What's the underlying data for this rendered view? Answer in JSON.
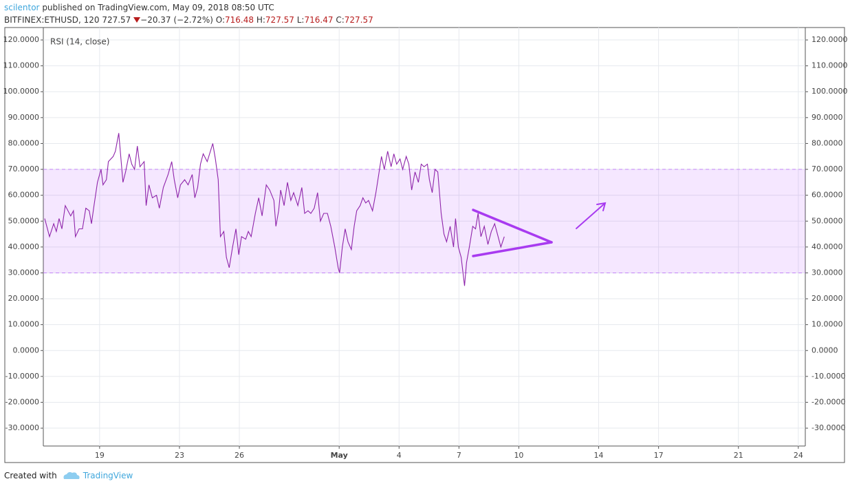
{
  "header": {
    "author": "scilentor",
    "published": " published on TradingView.com, May 09, 2018 08:50 UTC",
    "symbol": "BITFINEX:ETHUSD, 120",
    "last": "727.57",
    "change": "−20.37 (−2.72%)",
    "ohlc": [
      {
        "label": "O:",
        "value": "716.48"
      },
      {
        "label": "H:",
        "value": "727.57"
      },
      {
        "label": "L:",
        "value": "716.47"
      },
      {
        "label": "C:",
        "value": "727.57"
      }
    ]
  },
  "footer": {
    "created_with": "Created with",
    "brand": "TradingView"
  },
  "chart_data": {
    "type": "line",
    "x": [
      16.25,
      16.49,
      16.7,
      16.83,
      16.97,
      17.11,
      17.28,
      17.55,
      17.69,
      17.79,
      17.97,
      18.14,
      18.31,
      18.48,
      18.59,
      18.72,
      18.89,
      19.07,
      19.17,
      19.34,
      19.44,
      19.68,
      19.79,
      19.96,
      20.17,
      20.3,
      20.48,
      20.61,
      20.75,
      20.89,
      21.02,
      21.23,
      21.33,
      21.47,
      21.64,
      21.85,
      21.99,
      22.19,
      22.43,
      22.61,
      22.74,
      22.91,
      23.05,
      23.26,
      23.43,
      23.64,
      23.77,
      23.91,
      24.05,
      24.19,
      24.39,
      24.67,
      24.8,
      24.94,
      25.05,
      25.22,
      25.35,
      25.49,
      25.66,
      25.83,
      25.97,
      26.11,
      26.32,
      26.45,
      26.59,
      26.8,
      26.97,
      27.14,
      27.35,
      27.52,
      27.73,
      27.83,
      27.97,
      28.07,
      28.24,
      28.41,
      28.58,
      28.72,
      28.93,
      29.13,
      29.27,
      29.44,
      29.58,
      29.75,
      29.92,
      30.06,
      30.23,
      30.41,
      30.58,
      30.78,
      30.95,
      31.02,
      31.16,
      31.3,
      31.44,
      31.61,
      31.75,
      31.88,
      32.05,
      32.19,
      32.33,
      32.47,
      32.67,
      32.84,
      32.98,
      33.12,
      33.26,
      33.43,
      33.6,
      33.74,
      33.88,
      34.05,
      34.18,
      34.36,
      34.49,
      34.63,
      34.8,
      34.97,
      35.11,
      35.25,
      35.42,
      35.52,
      35.66,
      35.8,
      35.94,
      36.11,
      36.25,
      36.38,
      36.56,
      36.73,
      36.83,
      36.97,
      37.11,
      37.28,
      37.38,
      37.52,
      37.69,
      37.83,
      37.96,
      38.1,
      38.27,
      38.45,
      38.62,
      38.79,
      38.96,
      39.1,
      39.27
    ],
    "series": [
      {
        "name": "RSI (14, close)",
        "color": "#8e24aa",
        "values": [
          51,
          44,
          49,
          46,
          51,
          47,
          56,
          52,
          54,
          44,
          47,
          47,
          55,
          54,
          49,
          56,
          65,
          70,
          64,
          66,
          73,
          75,
          77,
          84,
          65,
          69,
          76,
          72,
          70,
          79,
          71,
          73,
          56,
          64,
          59,
          60,
          55,
          63,
          68,
          73,
          66,
          59,
          64,
          66,
          64,
          68,
          59,
          63,
          72,
          76,
          73,
          80,
          74,
          66,
          44,
          46,
          36,
          32,
          40,
          47,
          37,
          44,
          43,
          46,
          44,
          53,
          59,
          52,
          64,
          62,
          58,
          48,
          54,
          62,
          56,
          65,
          58,
          61,
          56,
          63,
          53,
          54,
          53,
          55,
          61,
          50,
          53,
          53,
          48,
          40,
          32,
          30,
          40,
          47,
          42,
          39,
          48,
          54,
          56,
          59,
          57,
          58,
          54,
          61,
          68,
          75,
          70,
          77,
          71,
          76,
          72,
          74,
          70,
          75,
          72,
          62,
          69,
          65,
          72,
          71,
          72,
          66,
          61,
          70,
          69,
          53,
          45,
          42,
          48,
          40,
          51,
          40,
          36,
          25,
          34,
          40,
          48,
          47,
          53,
          44,
          48,
          41,
          46,
          49,
          44,
          40,
          44
        ]
      }
    ],
    "band": {
      "upper": 70,
      "lower": 30,
      "color": "#9915ff"
    },
    "xlim": [
      16.18,
      54.35
    ],
    "xticks": [
      {
        "value": 19,
        "label": "19"
      },
      {
        "value": 23,
        "label": "23"
      },
      {
        "value": 26,
        "label": "26"
      },
      {
        "value": 31,
        "label": "May"
      },
      {
        "value": 34,
        "label": "4"
      },
      {
        "value": 37,
        "label": "7"
      },
      {
        "value": 40,
        "label": "10"
      },
      {
        "value": 44,
        "label": "14"
      },
      {
        "value": 47,
        "label": "17"
      },
      {
        "value": 51,
        "label": "21"
      },
      {
        "value": 54,
        "label": "24"
      }
    ],
    "ylim": [
      -36.9,
      124.8
    ],
    "yticks": [
      {
        "value": 120,
        "label": "120.0000"
      },
      {
        "value": 110,
        "label": "110.0000"
      },
      {
        "value": 100,
        "label": "100.0000"
      },
      {
        "value": 90,
        "label": "90.0000"
      },
      {
        "value": 80,
        "label": "80.0000"
      },
      {
        "value": 70,
        "label": "70.0000"
      },
      {
        "value": 60,
        "label": "60.0000"
      },
      {
        "value": 50,
        "label": "50.0000"
      },
      {
        "value": 40,
        "label": "40.0000"
      },
      {
        "value": 30,
        "label": "30.0000"
      },
      {
        "value": 20,
        "label": "20.0000"
      },
      {
        "value": 10,
        "label": "10.0000"
      },
      {
        "value": 0,
        "label": "0.0000"
      },
      {
        "value": -10,
        "label": "-10.0000"
      },
      {
        "value": -20,
        "label": "-20.0000"
      },
      {
        "value": -30,
        "label": "-30.0000"
      }
    ],
    "grid": true
  }
}
